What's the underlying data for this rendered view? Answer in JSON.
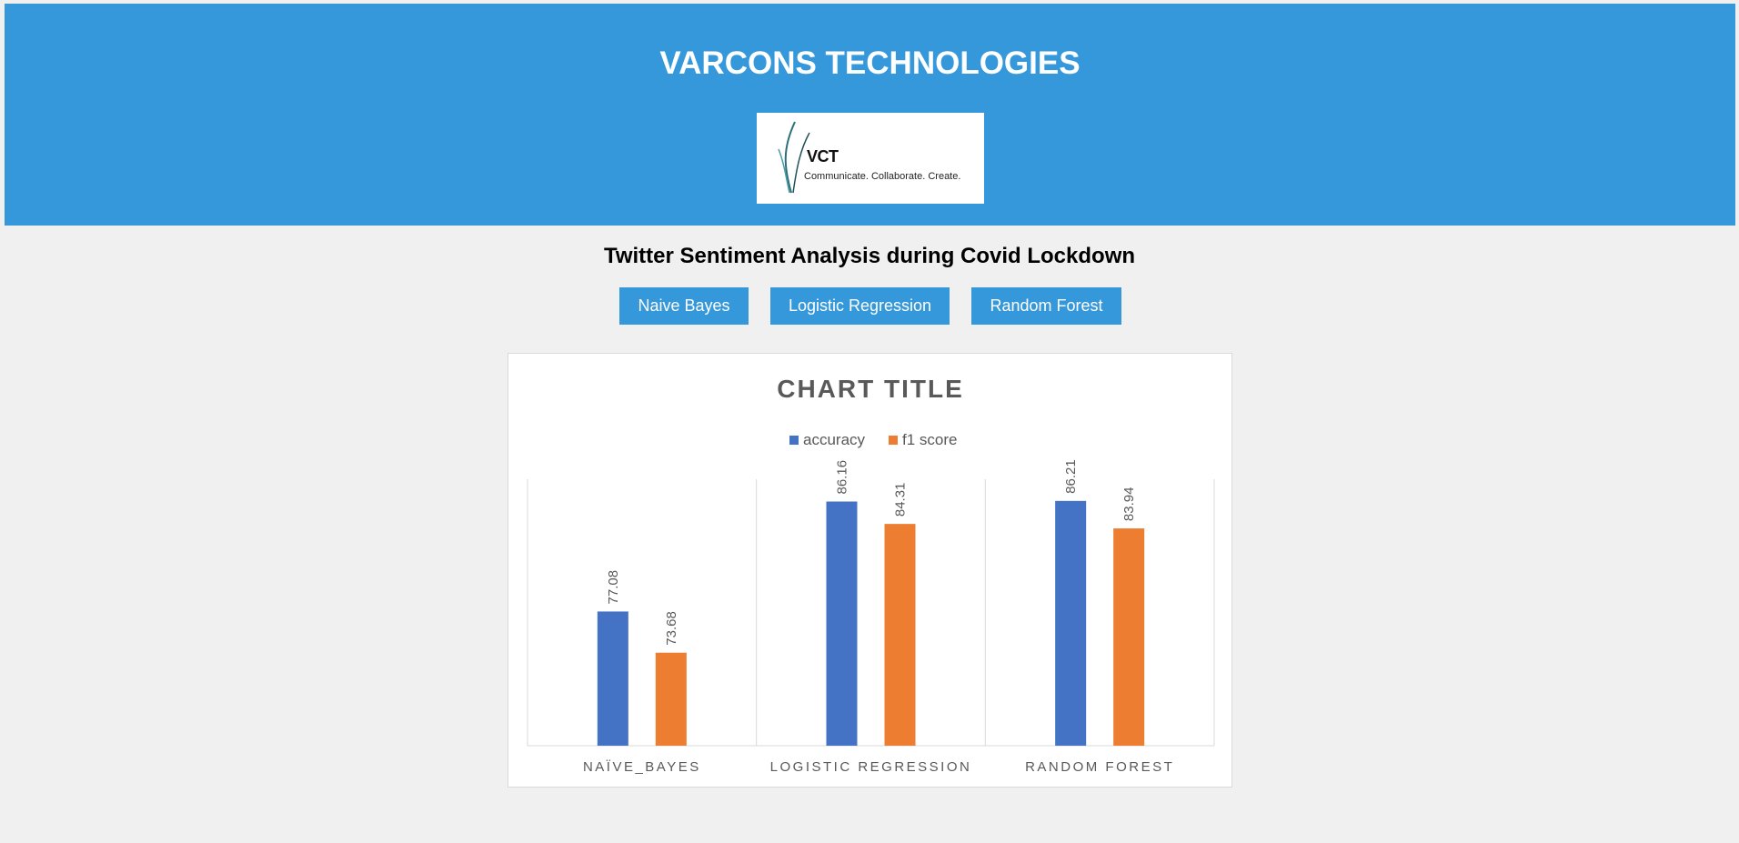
{
  "header": {
    "title": "VARCONS TECHNOLOGIES",
    "logo": {
      "mark": "VCT",
      "tagline": "Communicate. Collaborate. Create."
    }
  },
  "page_title": "Twitter Sentiment Analysis during Covid Lockdown",
  "buttons": {
    "naive_bayes": "Naive Bayes",
    "logistic_regression": "Logistic Regression",
    "random_forest": "Random Forest"
  },
  "colors": {
    "header_bg": "#3598db",
    "button_bg": "#3598db",
    "accuracy": "#4472c4",
    "f1_score": "#ed7d31"
  },
  "chart_data": {
    "type": "bar",
    "title": "CHART TITLE",
    "categories": [
      "NAÏVE_BAYES",
      "LOGISTIC REGRESSION",
      "RANDOM FOREST"
    ],
    "series": [
      {
        "name": "accuracy",
        "values": [
          77.08,
          86.16,
          86.21
        ]
      },
      {
        "name": "f1 score",
        "values": [
          73.68,
          84.31,
          83.94
        ]
      }
    ],
    "ylim": [
      66,
      88
    ],
    "legend": "top",
    "grid": false
  }
}
